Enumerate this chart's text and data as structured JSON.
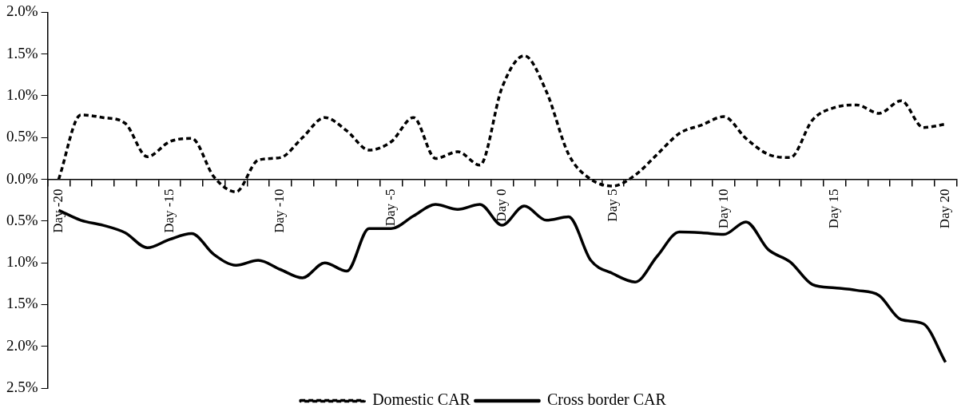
{
  "chart_data": {
    "type": "line",
    "categories": [
      "Day -20",
      null,
      null,
      null,
      null,
      "Day -15",
      null,
      null,
      null,
      null,
      "Day -10",
      null,
      null,
      null,
      null,
      "Day -5",
      null,
      null,
      null,
      null,
      "Day 0",
      null,
      null,
      null,
      null,
      "Day 5",
      null,
      null,
      null,
      null,
      "Day 10",
      null,
      null,
      null,
      null,
      "Day 15",
      null,
      null,
      null,
      null,
      "Day 20"
    ],
    "series": [
      {
        "name": "Domestic CAR",
        "color": "#000000",
        "line_style": "dashed",
        "values": [
          0.0,
          0.77,
          0.74,
          0.67,
          0.27,
          0.45,
          0.49,
          0.03,
          -0.15,
          0.23,
          0.26,
          0.5,
          0.74,
          0.58,
          0.35,
          0.45,
          0.74,
          0.25,
          0.33,
          0.17,
          1.1,
          1.48,
          1.05,
          0.3,
          0.0,
          -0.08,
          0.05,
          0.3,
          0.55,
          0.65,
          0.75,
          0.49,
          0.3,
          0.26,
          0.71,
          0.86,
          0.89,
          0.79,
          0.94,
          0.62,
          0.66
        ]
      },
      {
        "name": "Cross border CAR",
        "color": "#000000",
        "line_style": "solid",
        "values": [
          -0.37,
          -0.49,
          -0.55,
          -0.64,
          -0.82,
          -0.72,
          -0.65,
          -0.9,
          -1.03,
          -0.97,
          -1.08,
          -1.18,
          -1.0,
          -1.1,
          -0.59,
          -0.59,
          -0.44,
          -0.3,
          -0.36,
          -0.3,
          -0.55,
          -0.32,
          -0.49,
          -0.45,
          -0.97,
          -1.13,
          -1.23,
          -0.92,
          -0.63,
          -0.64,
          -0.66,
          -0.51,
          -0.84,
          -0.99,
          -1.26,
          -1.3,
          -1.33,
          -1.39,
          -1.68,
          -1.73,
          -2.19
        ]
      }
    ],
    "ylim": [
      -2.5,
      2.0
    ],
    "yticks": [
      {
        "value": -2.5,
        "label": "2.5%"
      },
      {
        "value": -2.0,
        "label": "2.0%"
      },
      {
        "value": -1.5,
        "label": "1.5%"
      },
      {
        "value": -1.0,
        "label": "1.0%"
      },
      {
        "value": -0.5,
        "label": "0.5%"
      },
      {
        "value": 0,
        "label": "0.0%"
      },
      {
        "value": 0.5,
        "label": "0.5%"
      },
      {
        "value": 1.0,
        "label": "1.0%"
      },
      {
        "value": 1.5,
        "label": "1.5%"
      },
      {
        "value": 2.0,
        "label": "2.0%"
      }
    ],
    "grid": false,
    "legend": "bottom",
    "marker": "none"
  }
}
